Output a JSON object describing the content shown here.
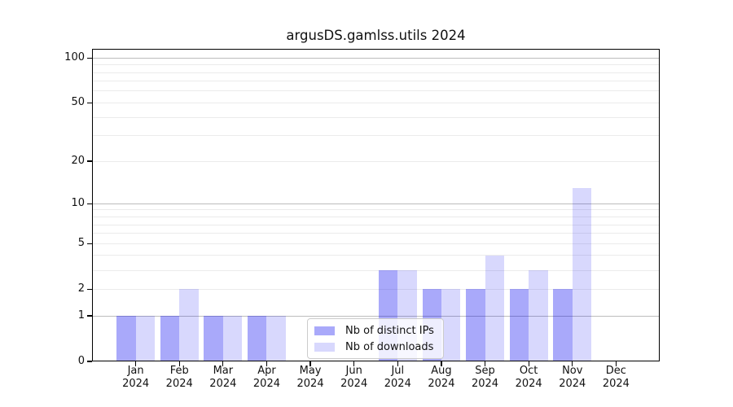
{
  "title": "argusDS.gamlss.utils 2024",
  "legend": {
    "items": [
      {
        "label": "Nb of distinct IPs",
        "series_key": "ips"
      },
      {
        "label": "Nb of downloads",
        "series_key": "downloads"
      }
    ]
  },
  "colors": {
    "bar_ips": "rgba(10,10,240,0.35)",
    "bar_downloads": "rgba(10,10,240,0.16)",
    "grid_major": "#bcbcbc",
    "grid_minor": "#ebebeb",
    "axis": "#000000",
    "text": "#111111",
    "legend_border": "#cccccc",
    "legend_background": "rgba(255,255,255,0.8)"
  },
  "chart_data": {
    "type": "bar",
    "title": "argusDS.gamlss.utils 2024",
    "categories": [
      "Jan",
      "Feb",
      "Mar",
      "Apr",
      "May",
      "Jun",
      "Jul",
      "Aug",
      "Sep",
      "Oct",
      "Nov",
      "Dec"
    ],
    "category_year": "2024",
    "series": [
      {
        "name": "Nb of distinct IPs",
        "values": [
          1,
          1,
          1,
          1,
          0,
          0,
          3,
          2,
          2,
          2,
          2,
          0
        ]
      },
      {
        "name": "Nb of downloads",
        "values": [
          1,
          2,
          1,
          1,
          0,
          0,
          3,
          2,
          4,
          3,
          13,
          0
        ]
      }
    ],
    "yticks": [
      0,
      1,
      2,
      5,
      10,
      20,
      50,
      100
    ],
    "yscale": "log1p",
    "ylim": [
      0,
      115
    ],
    "grid": "on",
    "legend_position": "bottom-center-inside",
    "xlabel": "",
    "ylabel": ""
  }
}
